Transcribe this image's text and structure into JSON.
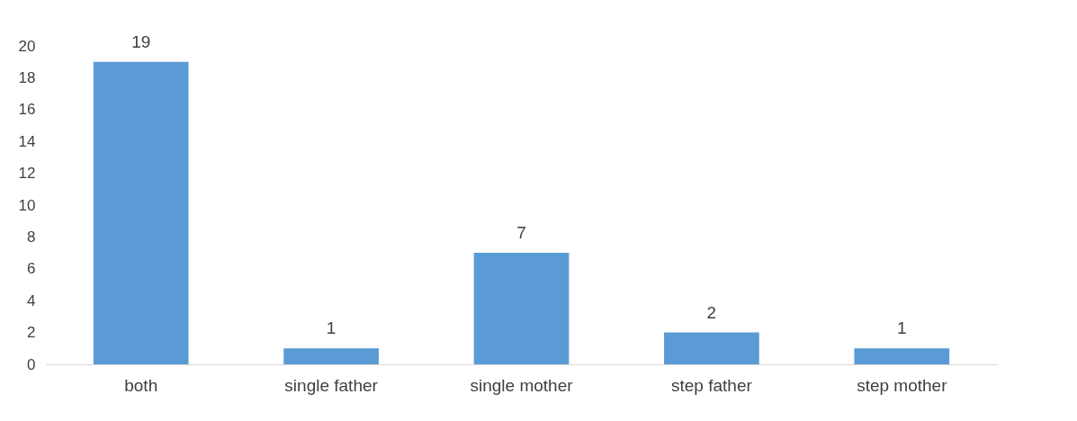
{
  "chart_data": {
    "type": "bar",
    "categories": [
      "both",
      "single father",
      "single mother",
      "step father",
      "step mother"
    ],
    "values": [
      19,
      1,
      7,
      2,
      1
    ],
    "color": "#5b9bd5",
    "ylim": [
      0,
      20
    ],
    "yticks": [
      0,
      2,
      4,
      6,
      8,
      10,
      12,
      14,
      16,
      18,
      20
    ],
    "grid": false,
    "data_labels": true
  }
}
